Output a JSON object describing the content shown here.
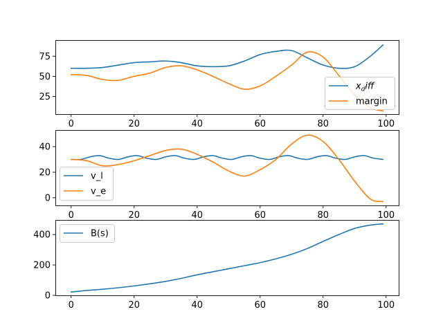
{
  "chart_data": [
    {
      "type": "line",
      "xlim": [
        -5,
        104
      ],
      "ylim": [
        3,
        95
      ],
      "xticks": [
        0,
        20,
        40,
        60,
        80,
        100
      ],
      "yticks": [
        25,
        50,
        75
      ],
      "legend": "lower-right",
      "series": [
        {
          "name": "x_diff",
          "color": "#1f77b4",
          "x": [
            0,
            5,
            10,
            15,
            20,
            25,
            30,
            35,
            40,
            45,
            50,
            55,
            60,
            65,
            70,
            75,
            80,
            85,
            90,
            95,
            99
          ],
          "y": [
            60,
            60,
            61,
            64,
            67,
            68,
            69,
            67,
            63,
            62,
            63,
            69,
            77,
            81,
            82,
            73,
            64,
            60,
            62,
            75,
            89
          ]
        },
        {
          "name": "margin",
          "color": "#ff7f0e",
          "x": [
            0,
            5,
            10,
            15,
            20,
            25,
            30,
            35,
            40,
            45,
            50,
            55,
            60,
            65,
            70,
            75,
            80,
            85,
            90,
            95,
            99
          ],
          "y": [
            52,
            51,
            46,
            45,
            50,
            54,
            61,
            63,
            58,
            50,
            41,
            34,
            38,
            50,
            64,
            80,
            74,
            51,
            27,
            11,
            7
          ]
        }
      ]
    },
    {
      "type": "line",
      "xlim": [
        -5,
        104
      ],
      "ylim": [
        -6,
        53
      ],
      "xticks": [
        0,
        20,
        40,
        60,
        80,
        100
      ],
      "yticks": [
        0,
        20,
        40
      ],
      "legend": "center-left",
      "series": [
        {
          "name": "v_l",
          "color": "#1f77b4",
          "x": [
            0,
            3,
            6,
            9,
            12,
            15,
            18,
            21,
            24,
            27,
            30,
            33,
            36,
            39,
            42,
            45,
            48,
            51,
            54,
            57,
            60,
            63,
            66,
            69,
            72,
            75,
            78,
            81,
            84,
            87,
            90,
            93,
            96,
            99
          ],
          "y": [
            30,
            30,
            32,
            33,
            31,
            30,
            32,
            33,
            31,
            30,
            32,
            33,
            31,
            30,
            32,
            33,
            31,
            30,
            32,
            33,
            31,
            30,
            32,
            33,
            31,
            30,
            32,
            33,
            31,
            30,
            32,
            33,
            31,
            30
          ]
        },
        {
          "name": "v_e",
          "color": "#ff7f0e",
          "x": [
            0,
            5,
            10,
            15,
            20,
            25,
            30,
            35,
            40,
            45,
            50,
            55,
            60,
            65,
            70,
            75,
            80,
            85,
            90,
            95,
            99
          ],
          "y": [
            30,
            29,
            25,
            26,
            29,
            33,
            37,
            38,
            34,
            28,
            21,
            17,
            22,
            30,
            42,
            49,
            44,
            30,
            13,
            -1,
            -3
          ]
        }
      ]
    },
    {
      "type": "line",
      "xlim": [
        -5,
        104
      ],
      "ylim": [
        0,
        496
      ],
      "xticks": [
        0,
        20,
        40,
        60,
        80,
        100
      ],
      "yticks": [
        0,
        200,
        400
      ],
      "legend": "upper-left",
      "series": [
        {
          "name": "B(s)",
          "color": "#1f77b4",
          "x": [
            0,
            5,
            10,
            15,
            20,
            25,
            30,
            35,
            40,
            45,
            50,
            55,
            60,
            65,
            70,
            75,
            80,
            85,
            90,
            95,
            99
          ],
          "y": [
            22,
            32,
            40,
            50,
            62,
            76,
            92,
            112,
            135,
            155,
            175,
            195,
            215,
            240,
            270,
            308,
            355,
            400,
            440,
            462,
            470
          ]
        }
      ]
    }
  ]
}
